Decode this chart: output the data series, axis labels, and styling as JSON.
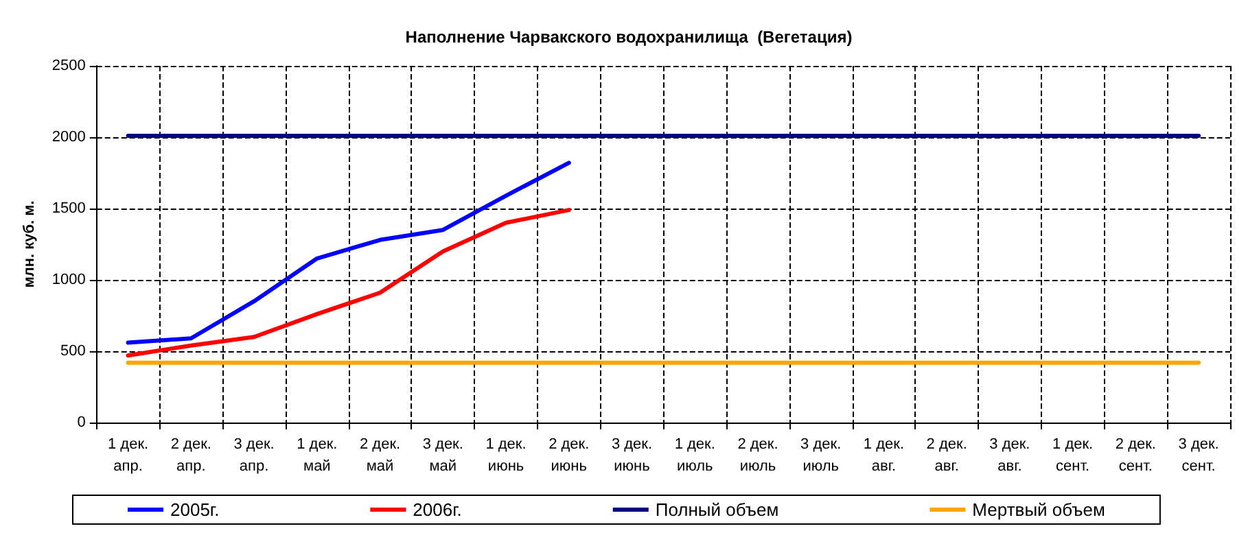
{
  "chart_data": {
    "type": "line",
    "title": "Наполнение Чарвакского водохранилища  (Вегетация)",
    "ylabel": "млн. куб. м.",
    "categories": [
      "1 дек.\nапр.",
      "2 дек.\nапр.",
      "3 дек.\nапр.",
      "1 дек.\nмай",
      "2 дек.\nмай",
      "3 дек.\nмай",
      "1 дек.\nиюнь",
      "2 дек.\nиюнь",
      "3 дек.\nиюнь",
      "1 дек.\nиюль",
      "2 дек.\nиюль",
      "3 дек.\nиюль",
      "1 дек.\nавг.",
      "2 дек.\nавг.",
      "3 дек.\nавг.",
      "1 дек.\nсент.",
      "2 дек.\nсент.",
      "3 дек.\nсент."
    ],
    "series": [
      {
        "name": "2005г.",
        "color": "#0000ff",
        "values": [
          560,
          590,
          850,
          1150,
          1280,
          1350,
          1590,
          1820,
          null,
          null,
          null,
          null,
          null,
          null,
          null,
          null,
          null,
          null
        ]
      },
      {
        "name": "2006г.",
        "color": "#ff0000",
        "values": [
          470,
          540,
          600,
          760,
          910,
          1200,
          1400,
          1490,
          null,
          null,
          null,
          null,
          null,
          null,
          null,
          null,
          null,
          null
        ]
      },
      {
        "name": "Полный объем",
        "color": "#000080",
        "values": [
          2010,
          2010,
          2010,
          2010,
          2010,
          2010,
          2010,
          2010,
          2010,
          2010,
          2010,
          2010,
          2010,
          2010,
          2010,
          2010,
          2010,
          2010
        ]
      },
      {
        "name": "Мертвый объем",
        "color": "#ffa500",
        "values": [
          420,
          420,
          420,
          420,
          420,
          420,
          420,
          420,
          420,
          420,
          420,
          420,
          420,
          420,
          420,
          420,
          420,
          420
        ]
      }
    ],
    "ylim": [
      0,
      2500
    ],
    "yticks": [
      0,
      500,
      1000,
      1500,
      2000,
      2500
    ],
    "grid": true,
    "legend": "bottom",
    "marker": "none",
    "line_style": "solid"
  }
}
